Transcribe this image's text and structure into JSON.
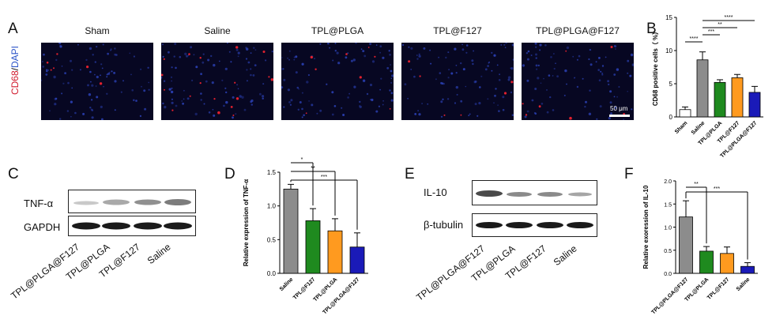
{
  "panels": {
    "A": {
      "letter": "A",
      "stain": {
        "cd68": "CD68",
        "sep": "/",
        "dapi": "DAPI",
        "cd68_color": "#d0182b",
        "dapi_color": "#2d55c8"
      },
      "groups": [
        "Sham",
        "Saline",
        "TPL@PLGA",
        "TPL@F127",
        "TPL@PLGA@F127"
      ],
      "scale_bar": "50 μm"
    },
    "B": {
      "letter": "B"
    },
    "C": {
      "letter": "C",
      "rows": [
        "TNF-α",
        "GAPDH"
      ],
      "lanes": [
        "TPL@PLGA@F127",
        "TPL@PLGA",
        "TPL@F127",
        "Saline"
      ]
    },
    "D": {
      "letter": "D"
    },
    "E": {
      "letter": "E",
      "rows": [
        "IL-10",
        "β-tubulin"
      ],
      "lanes": [
        "TPL@PLGA@F127",
        "TPL@PLGA",
        "TPL@F127",
        "Saline"
      ]
    },
    "F": {
      "letter": "F"
    }
  },
  "chart_data": [
    {
      "id": "B",
      "type": "bar",
      "ylabel": "CD68 positive cells（ %）",
      "categories": [
        "Sham",
        "Saline",
        "TPL@PLGA",
        "TPL@F127",
        "TPL@PLGA@F127"
      ],
      "values": [
        1.1,
        8.6,
        5.2,
        5.9,
        3.7
      ],
      "errors": [
        0.4,
        1.2,
        0.4,
        0.5,
        0.9
      ],
      "colors": [
        "#ffffff",
        "#8c8c8c",
        "#1f8a1f",
        "#ff9a1f",
        "#1a1ab8"
      ],
      "ylim": [
        0,
        15
      ],
      "yticks": [
        0,
        5,
        10,
        15
      ],
      "significance": [
        {
          "from": "Sham",
          "to": "Saline",
          "label": "****"
        },
        {
          "from": "Saline",
          "to": "TPL@PLGA",
          "label": "***"
        },
        {
          "from": "Saline",
          "to": "TPL@F127",
          "label": "**"
        },
        {
          "from": "Saline",
          "to": "TPL@PLGA@F127",
          "label": "****"
        }
      ]
    },
    {
      "id": "D",
      "type": "bar",
      "ylabel": "Relative expression of TNF-α",
      "categories": [
        "Saline",
        "TPL@F127",
        "TPL@PLGA",
        "TPL@PLGA@F127"
      ],
      "values": [
        1.25,
        0.78,
        0.63,
        0.39
      ],
      "errors": [
        0.07,
        0.18,
        0.18,
        0.21
      ],
      "colors": [
        "#8c8c8c",
        "#1f8a1f",
        "#ff9a1f",
        "#1a1ab8"
      ],
      "ylim": [
        0,
        1.5
      ],
      "yticks": [
        0.0,
        0.5,
        1.0,
        1.5
      ],
      "significance": [
        {
          "from": "Saline",
          "to": "TPL@F127",
          "label": "*"
        },
        {
          "from": "Saline",
          "to": "TPL@PLGA",
          "label": "**"
        },
        {
          "from": "Saline",
          "to": "TPL@PLGA@F127",
          "label": "***"
        }
      ]
    },
    {
      "id": "F",
      "type": "bar",
      "ylabel": "Relative exoression of IL-10",
      "categories": [
        "TPL@PLGA@F127",
        "TPL@PLGA",
        "TPL@F127",
        "Saline"
      ],
      "values": [
        1.22,
        0.48,
        0.43,
        0.15
      ],
      "errors": [
        0.35,
        0.1,
        0.14,
        0.08
      ],
      "colors": [
        "#8c8c8c",
        "#1f8a1f",
        "#ff9a1f",
        "#1a1ab8"
      ],
      "ylim": [
        0,
        2.0
      ],
      "yticks": [
        0.0,
        0.5,
        1.0,
        1.5,
        2.0
      ],
      "significance": [
        {
          "from": "TPL@PLGA@F127",
          "to": "TPL@PLGA",
          "label": "**"
        },
        {
          "from": "TPL@PLGA@F127",
          "to": "Saline",
          "label": "***"
        }
      ]
    }
  ]
}
